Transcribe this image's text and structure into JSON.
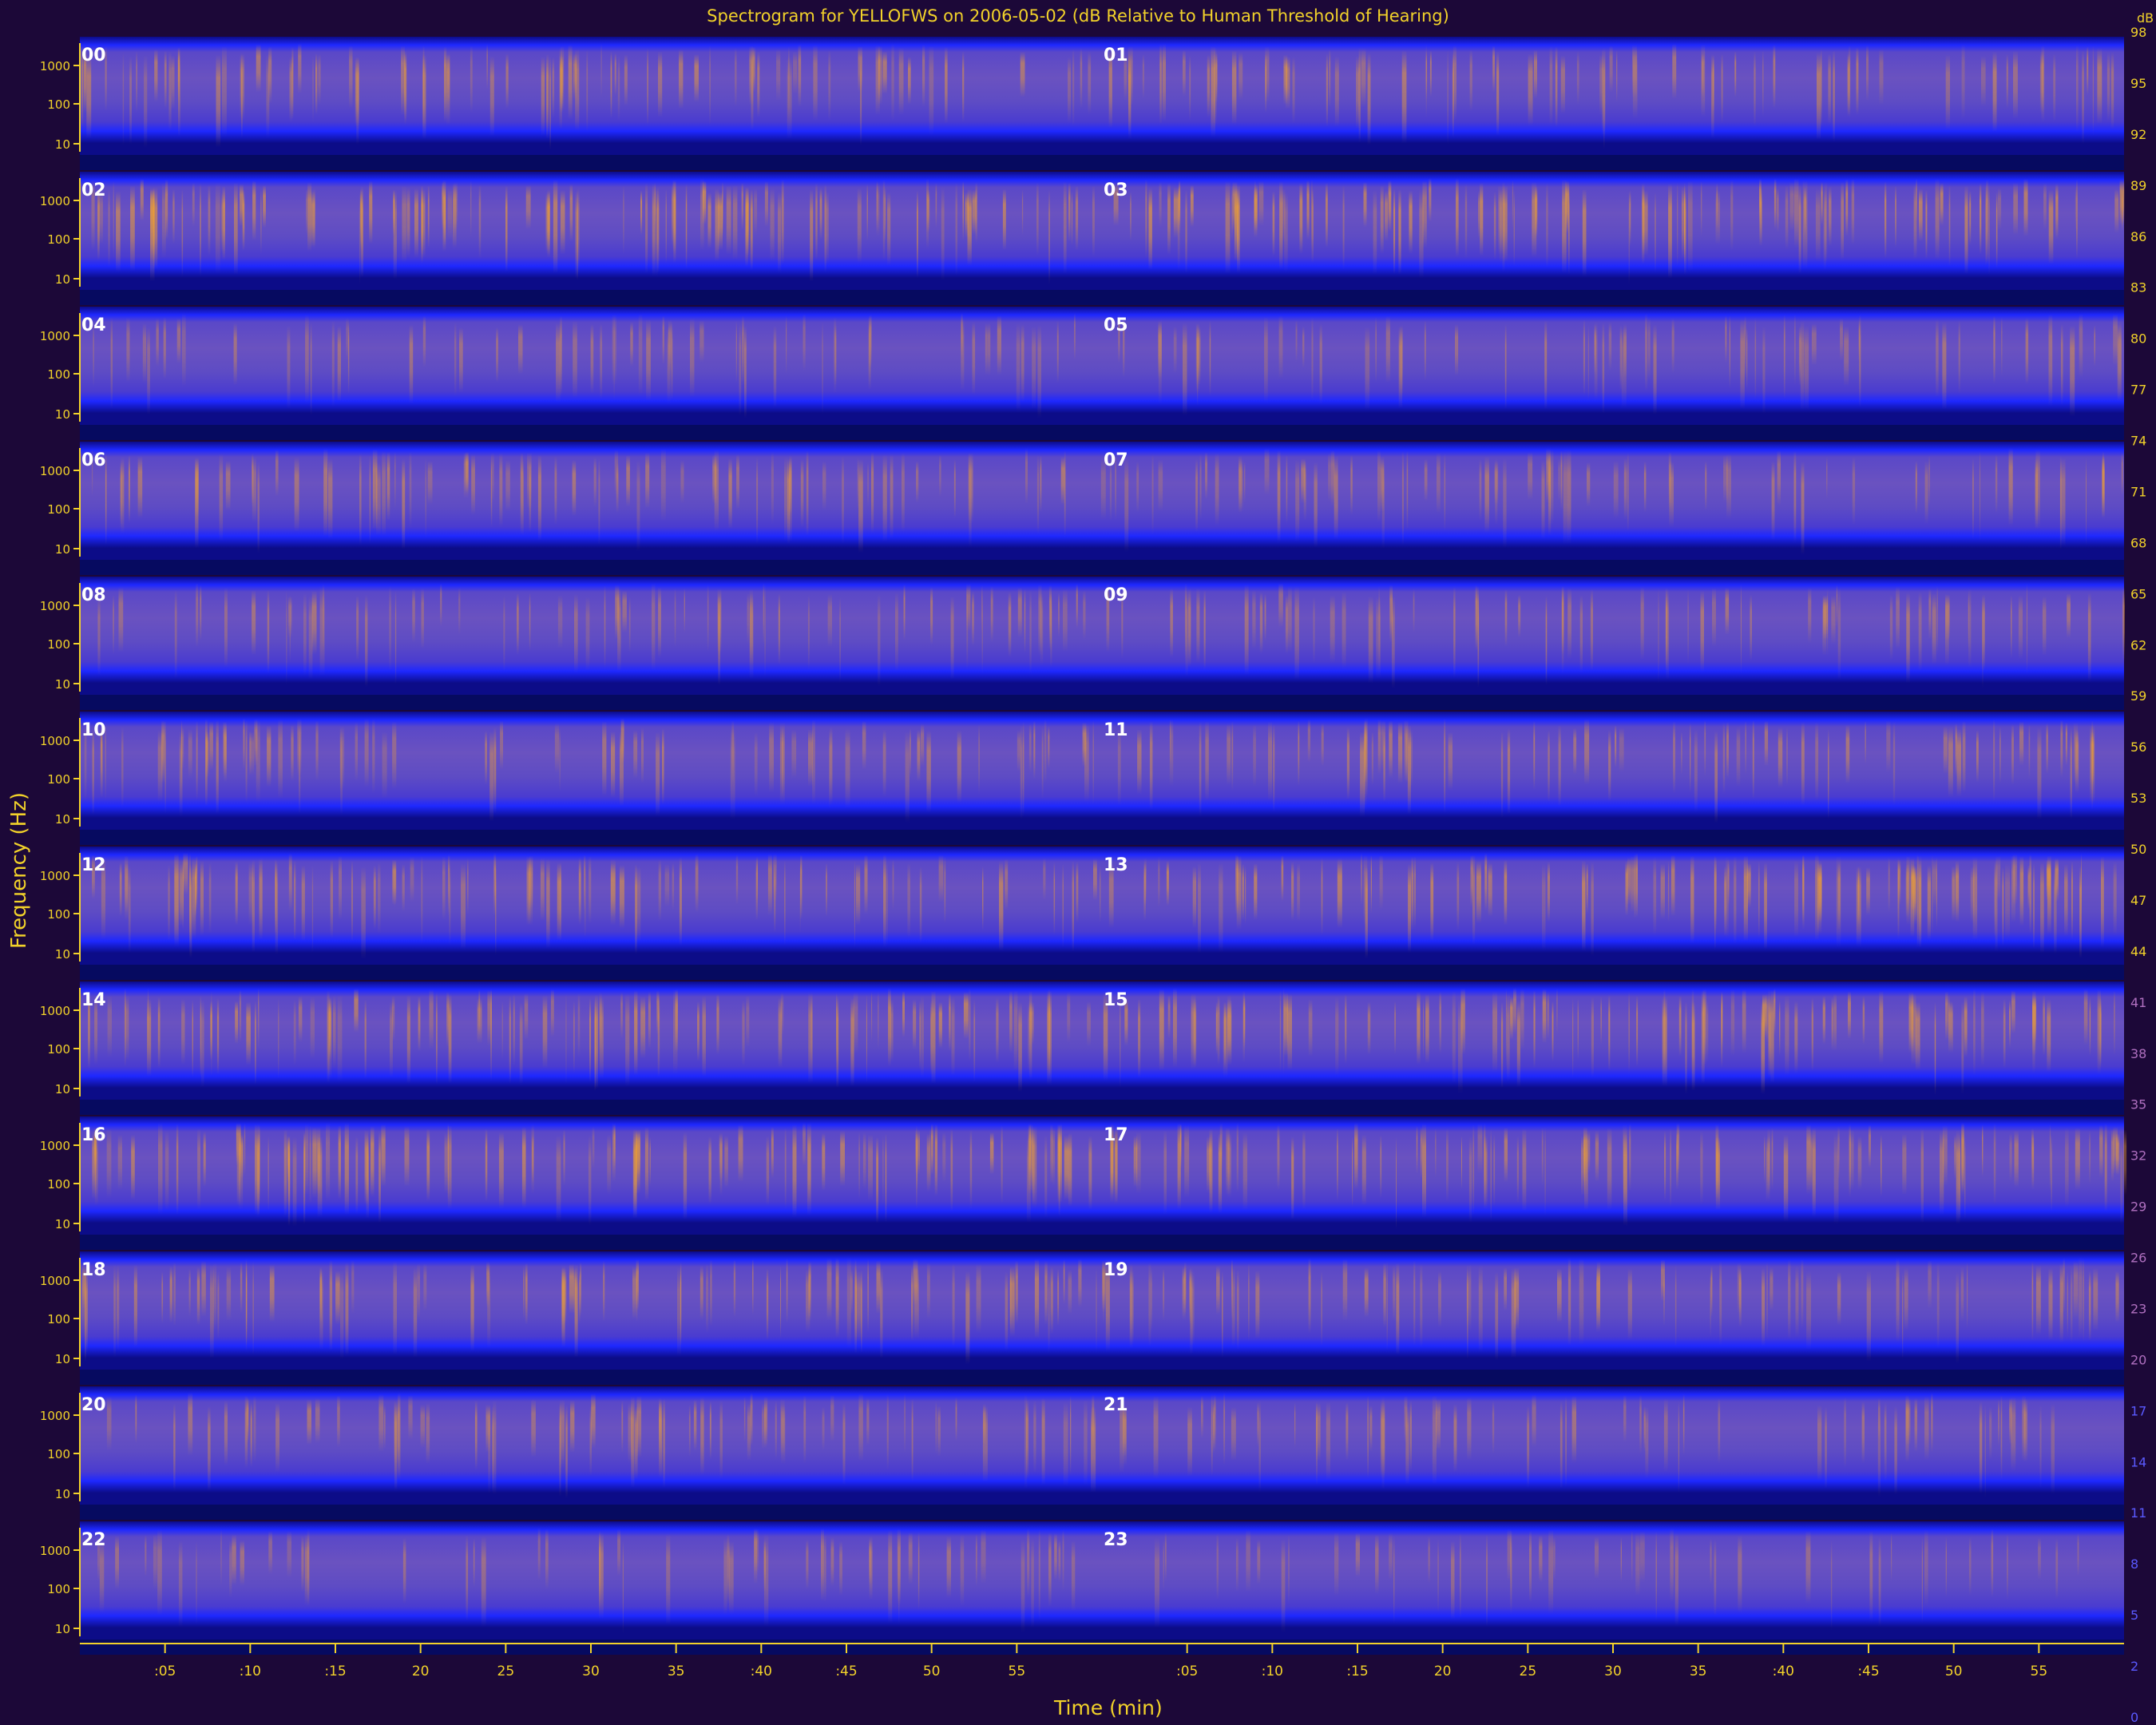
{
  "chart_data": {
    "type": "heatmap",
    "title": "Spectrogram for YELLOFWS on 2006-05-02 (dB Relative to Human Threshold of Hearing)",
    "xlabel": "Time (min)",
    "ylabel": "Frequency (Hz)",
    "hours": [
      "00",
      "01",
      "02",
      "03",
      "04",
      "05",
      "06",
      "07",
      "08",
      "09",
      "10",
      "11",
      "12",
      "13",
      "14",
      "15",
      "16",
      "17",
      "18",
      "19",
      "20",
      "21",
      "22",
      "23"
    ],
    "x_ticks": [
      ":05",
      ":10",
      ":15",
      "20",
      "25",
      "30",
      "35",
      ":40",
      ":45",
      "50",
      "55"
    ],
    "y_ticks": [
      "1000",
      "100",
      "10"
    ],
    "colorbar": {
      "label": "dB",
      "ticks": [
        98,
        95,
        92,
        89,
        86,
        83,
        80,
        77,
        74,
        71,
        68,
        65,
        62,
        59,
        56,
        53,
        50,
        47,
        44,
        41,
        38,
        35,
        32,
        29,
        26,
        23,
        20,
        17,
        14,
        11,
        8,
        5,
        2,
        0
      ]
    },
    "activity": [
      0.62,
      0.58,
      0.82,
      0.8,
      0.42,
      0.46,
      0.55,
      0.52,
      0.5,
      0.5,
      0.57,
      0.56,
      0.66,
      0.74,
      0.72,
      0.72,
      0.74,
      0.7,
      0.62,
      0.55,
      0.52,
      0.45,
      0.4,
      0.33
    ],
    "colors": {
      "background": "#1c0838",
      "axis_text": "#f2d22a",
      "band_low": "#0c0c88",
      "band_edge": "#1e28ff",
      "band_mid": "#5a48c8",
      "hot": "#f0a030"
    }
  }
}
